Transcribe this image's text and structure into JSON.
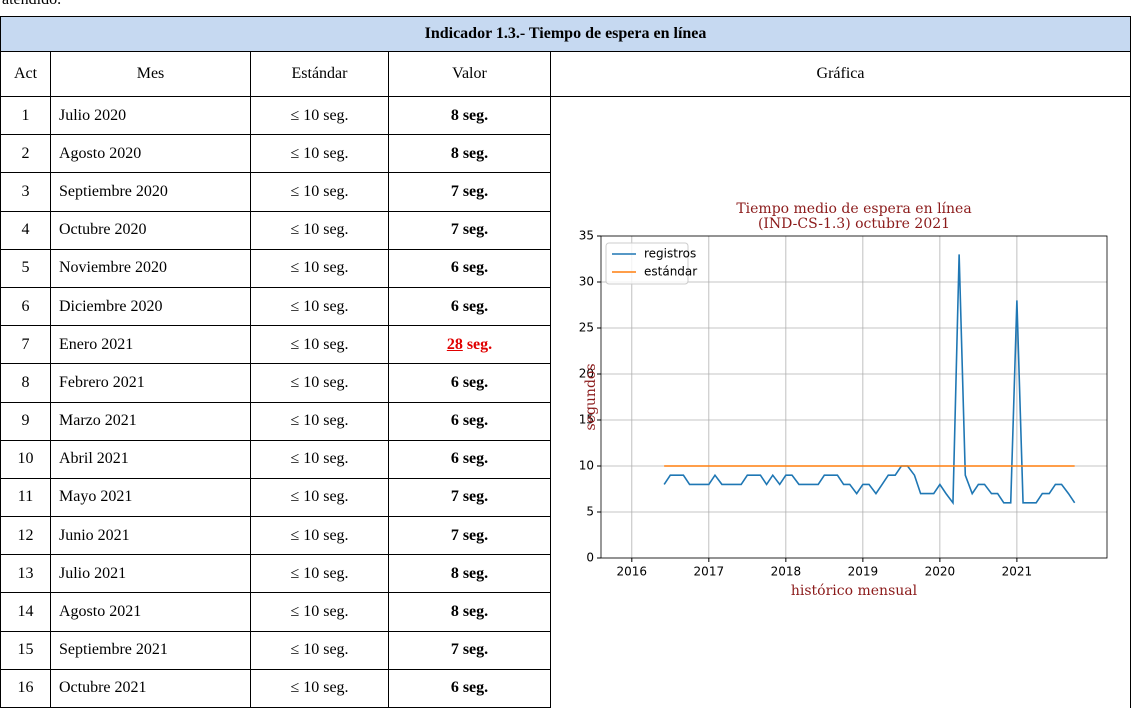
{
  "intro": "atendido.",
  "table": {
    "title": "Indicador 1.3.- Tiempo de espera en línea",
    "headers": [
      "Act",
      "Mes",
      "Estándar",
      "Valor",
      "Gráfica"
    ],
    "rows": [
      [
        "1",
        "Julio 2020",
        "≤ 10 seg.",
        "8 seg."
      ],
      [
        "2",
        "Agosto 2020",
        "≤ 10 seg.",
        "8 seg."
      ],
      [
        "3",
        "Septiembre 2020",
        "≤ 10 seg.",
        "7 seg."
      ],
      [
        "4",
        "Octubre 2020",
        "≤ 10 seg.",
        "7 seg."
      ],
      [
        "5",
        "Noviembre 2020",
        "≤ 10 seg.",
        "6 seg."
      ],
      [
        "6",
        "Diciembre 2020",
        "≤ 10 seg.",
        "6 seg."
      ],
      [
        "7",
        "Enero 2021",
        "≤ 10 seg.",
        [
          "28",
          "seg."
        ]
      ],
      [
        "8",
        "Febrero 2021",
        "≤ 10 seg.",
        "6 seg."
      ],
      [
        "9",
        "Marzo 2021",
        "≤ 10 seg.",
        "6 seg."
      ],
      [
        "10",
        "Abril 2021",
        "≤ 10 seg.",
        "6 seg."
      ],
      [
        "11",
        "Mayo 2021",
        "≤ 10 seg.",
        "7 seg."
      ],
      [
        "12",
        "Junio 2021",
        "≤ 10 seg.",
        "7 seg."
      ],
      [
        "13",
        "Julio 2021",
        "≤ 10 seg.",
        "8 seg."
      ],
      [
        "14",
        "Agosto 2021",
        "≤ 10 seg.",
        "8 seg."
      ],
      [
        "15",
        "Septiembre 2021",
        "≤ 10 seg.",
        "7 seg."
      ],
      [
        "16",
        "Octubre 2021",
        "≤ 10 seg.",
        "6 seg."
      ]
    ]
  },
  "chart_data": {
    "type": "line",
    "title": [
      "Tiempo medio de espera en línea",
      "(IND-CS-1.3) octubre 2021"
    ],
    "xlabel": "histórico mensual",
    "ylabel": "segundos",
    "xlim": [
      2015.6,
      2022.17
    ],
    "xticks": [
      2016,
      2017,
      2018,
      2019,
      2020,
      2021
    ],
    "ylim": [
      0,
      35
    ],
    "yticks": [
      0,
      5,
      10,
      15,
      20,
      25,
      30,
      35
    ],
    "grid": true,
    "legend": "upper left",
    "series": [
      {
        "name": "registros",
        "color": "#1f77b4",
        "x": [
          2016.42,
          2016.5,
          2016.58,
          2016.67,
          2016.75,
          2016.83,
          2016.92,
          2017.0,
          2017.08,
          2017.17,
          2017.25,
          2017.33,
          2017.42,
          2017.5,
          2017.58,
          2017.67,
          2017.75,
          2017.83,
          2017.92,
          2018.0,
          2018.08,
          2018.17,
          2018.25,
          2018.33,
          2018.42,
          2018.5,
          2018.58,
          2018.67,
          2018.75,
          2018.83,
          2018.92,
          2019.0,
          2019.08,
          2019.17,
          2019.25,
          2019.33,
          2019.42,
          2019.5,
          2019.58,
          2019.67,
          2019.75,
          2019.83,
          2019.92,
          2020.0,
          2020.08,
          2020.17,
          2020.25,
          2020.33,
          2020.42,
          2020.5,
          2020.58,
          2020.67,
          2020.75,
          2020.83,
          2020.92,
          2021.0,
          2021.08,
          2021.17,
          2021.25,
          2021.33,
          2021.42,
          2021.5,
          2021.58,
          2021.67,
          2021.75
        ],
        "values": [
          8,
          9,
          9,
          9,
          8,
          8,
          8,
          8,
          9,
          8,
          8,
          8,
          8,
          9,
          9,
          9,
          8,
          9,
          8,
          9,
          9,
          8,
          8,
          8,
          8,
          9,
          9,
          9,
          8,
          8,
          7,
          8,
          8,
          7,
          8,
          9,
          9,
          10,
          10,
          9,
          7,
          7,
          7,
          8,
          7,
          6,
          33,
          9,
          7,
          8,
          8,
          7,
          7,
          6,
          6,
          28,
          6,
          6,
          6,
          7,
          7,
          8,
          8,
          7,
          6
        ]
      },
      {
        "name": "estándar",
        "color": "#ff7f0e",
        "x": [
          2016.42,
          2021.75
        ],
        "values": [
          10,
          10
        ]
      }
    ]
  }
}
